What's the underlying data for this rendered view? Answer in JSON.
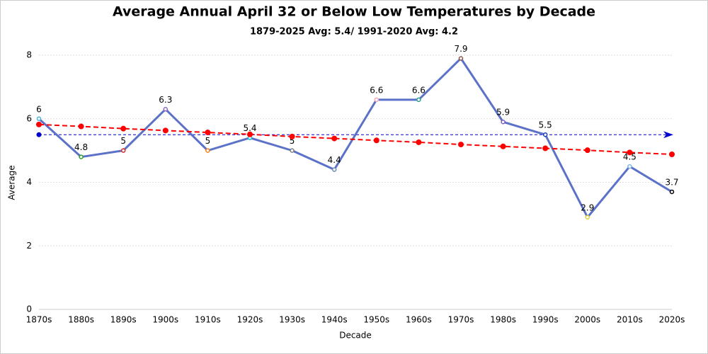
{
  "chart_data": {
    "type": "line",
    "title": "Average Annual April 32 or Below Low Temperatures by Decade",
    "subtitle": "1879-2025 Avg: 5.4/ 1991-2020 Avg: 4.2",
    "x_label": "Decade",
    "y_label": "Average",
    "categories": [
      "1870s",
      "1880s",
      "1890s",
      "1900s",
      "1910s",
      "1920s",
      "1930s",
      "1940s",
      "1950s",
      "1960s",
      "1970s",
      "1980s",
      "1990s",
      "2000s",
      "2010s",
      "2020s"
    ],
    "series": [
      {
        "color": "#5b72c8",
        "values": [
          6,
          4.8,
          5,
          6.3,
          5,
          5.4,
          5,
          4.4,
          6.6,
          6.6,
          7.9,
          5.9,
          5.5,
          2.9,
          4.5,
          3.7
        ],
        "marker_colors": [
          "#4ab0e0",
          "#2ca02c",
          "#d62728",
          "#9467bd",
          "#ff7f0e",
          "#17becf",
          "#7f7f7f",
          "#6b8fb3",
          "#f7a6b5",
          "#2a9d8f",
          "#8c564b",
          "#7b5ec7",
          "#1f3fbf",
          "#e0d030",
          "#7fb8e8",
          "#000000"
        ],
        "data_labels": true
      },
      {
        "color": "#ff0000",
        "style": "dashed",
        "values": [
          5.82,
          5.76,
          5.69,
          5.63,
          5.57,
          5.51,
          5.44,
          5.38,
          5.32,
          5.26,
          5.19,
          5.13,
          5.07,
          5.01,
          4.94,
          4.88
        ]
      }
    ],
    "reference_lines": [
      {
        "value": 5.5,
        "color": "#0000cc"
      }
    ],
    "ylim": [
      0,
      8
    ],
    "yticks": [
      0,
      2,
      4,
      6,
      8
    ],
    "grid": true
  }
}
